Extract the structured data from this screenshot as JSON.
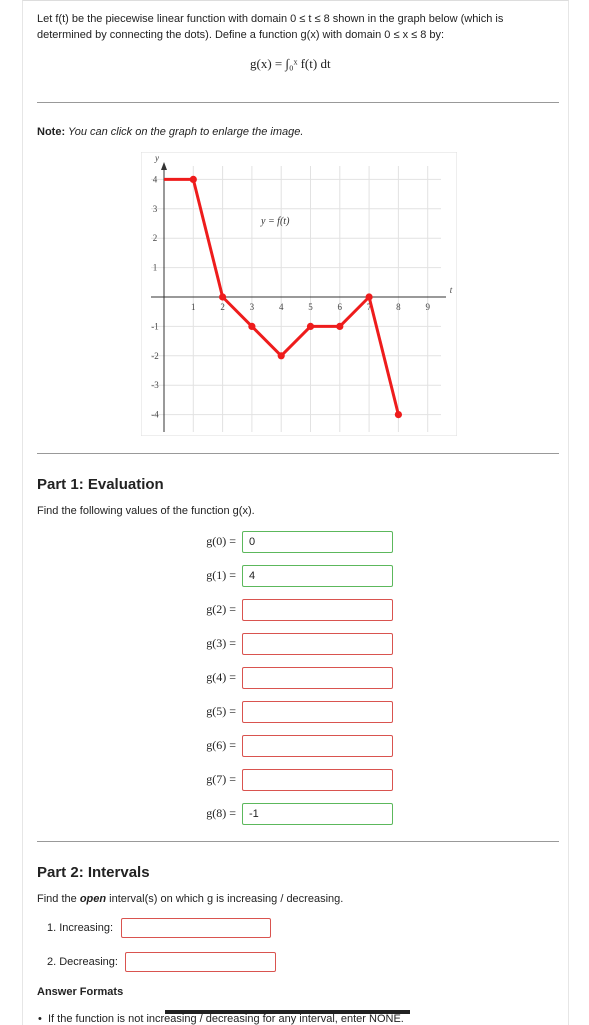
{
  "intro": {
    "line1": "Let f(t) be the piecewise linear function with domain 0 ≤ t ≤ 8 shown in the graph below (which is",
    "line2": "determined by connecting the dots). Define a function g(x) with domain 0 ≤ x ≤ 8 by:",
    "formula": "g(x) = ∫₀ˣ f(t) dt"
  },
  "note": {
    "bold": "Note:",
    "text": " You can click on the graph to enlarge the image."
  },
  "graph": {
    "curve_label": "y = f(t)",
    "x_axis_label": "t",
    "y_axis_label": "y",
    "x_ticks": [
      "1",
      "2",
      "3",
      "4",
      "5",
      "6",
      "7",
      "8",
      "9"
    ],
    "y_ticks": [
      "4",
      "3",
      "2",
      "1",
      "-1",
      "-2",
      "-3",
      "-4"
    ],
    "points": [
      [
        0,
        4
      ],
      [
        1,
        4
      ],
      [
        2,
        0
      ],
      [
        3,
        -1
      ],
      [
        4,
        -2
      ],
      [
        5,
        -1
      ],
      [
        6,
        -1
      ],
      [
        7,
        0
      ],
      [
        8,
        -4
      ]
    ],
    "line_color": "#ee1c1c"
  },
  "part1": {
    "title": "Part 1: Evaluation",
    "prompt": "Find the following values of the function g(x).",
    "rows": [
      {
        "label": "g(0) =",
        "value": "0",
        "status": "correct"
      },
      {
        "label": "g(1) =",
        "value": "4",
        "status": "correct"
      },
      {
        "label": "g(2) =",
        "value": "",
        "status": "incorrect"
      },
      {
        "label": "g(3) =",
        "value": "",
        "status": "incorrect"
      },
      {
        "label": "g(4) =",
        "value": "",
        "status": "incorrect"
      },
      {
        "label": "g(5) =",
        "value": "",
        "status": "incorrect"
      },
      {
        "label": "g(6) =",
        "value": "",
        "status": "incorrect"
      },
      {
        "label": "g(7) =",
        "value": "",
        "status": "incorrect"
      },
      {
        "label": "g(8) =",
        "value": "-1",
        "status": "correct"
      }
    ]
  },
  "part2": {
    "title": "Part 2: Intervals",
    "prompt_pre": "Find the ",
    "prompt_em": "open",
    "prompt_post": " interval(s) on which g is increasing / decreasing.",
    "increasing_label": "1. Increasing:",
    "decreasing_label": "2. Decreasing:",
    "increasing_value": "",
    "decreasing_value": ""
  },
  "answer_formats": {
    "title": "Answer Formats",
    "bullet1": "If the function is not increasing / decreasing for any interval, enter NONE."
  },
  "colors": {
    "correct_border": "#5cb85c",
    "incorrect_border": "#d9534f"
  }
}
